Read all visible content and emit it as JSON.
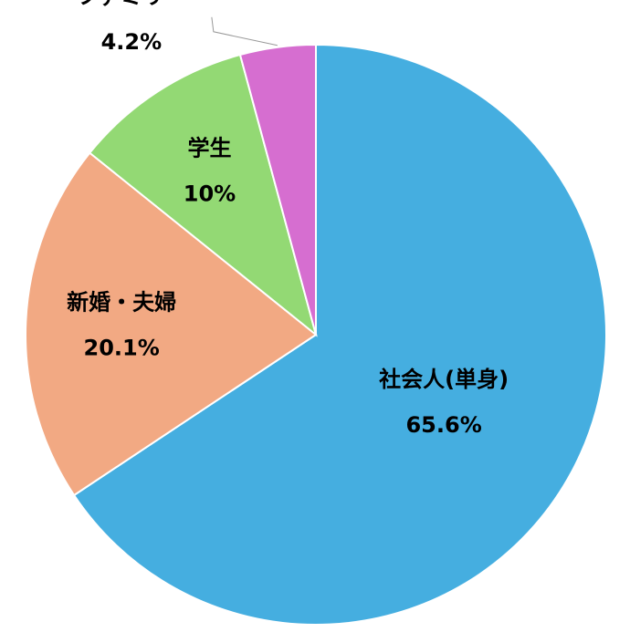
{
  "chart_data": {
    "type": "pie",
    "categories": [
      "社会人(単身)",
      "新婚・夫婦",
      "学生",
      "ファミリー"
    ],
    "values": [
      65.6,
      20.1,
      10,
      4.2
    ],
    "value_labels": [
      "65.6%",
      "20.1%",
      "10%",
      "4.2%"
    ],
    "colors": [
      "#45aee0",
      "#f2a983",
      "#93d974",
      "#d66ed0"
    ]
  }
}
